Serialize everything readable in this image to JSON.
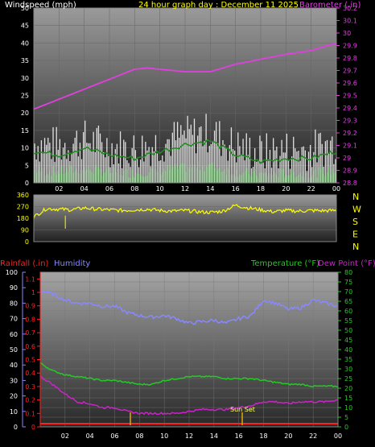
{
  "colors": {
    "wind": "#d8d8d8",
    "gust": "#ffffff",
    "avg_wind": "#1e8c1e",
    "barometer": "#e040e0",
    "direction": "#ffff00",
    "humidity": "#8888ff",
    "temperature": "#22cc22",
    "dew_point": "#cc22cc",
    "rainfall": "#ff2020",
    "sun_marker": "#ddaa00"
  },
  "panel1": {
    "left_label": "Windspeed (mph)",
    "title": "24 hour graph day : December 11 2025",
    "right_label": "Barometer (.in)"
  },
  "panel3": {
    "rain_label": "Rainfall (.in)",
    "humidity_label": "Humidity",
    "temp_label": "Temperature (°F)",
    "dew_label": "Dew Point (°F)",
    "sunset_label": "Sun Set"
  },
  "compass": [
    "N",
    "W",
    "S",
    "E",
    "N"
  ],
  "chart_data": [
    {
      "type": "area",
      "xlabel": "",
      "ylabel": "Windspeed (mph)",
      "x_ticks": [
        "02",
        "04",
        "06",
        "08",
        "10",
        "12",
        "14",
        "16",
        "18",
        "20",
        "22",
        "00"
      ],
      "y_ticks": [
        0,
        5,
        10,
        15,
        20,
        25,
        30,
        35,
        40,
        45,
        50
      ],
      "ylim": [
        0,
        50
      ],
      "y2_ticks": [
        "28.8",
        "28.9",
        "29",
        "29.1",
        "29.2",
        "29.3",
        "29.4",
        "29.5",
        "29.6",
        "29.7",
        "29.8",
        "29.9",
        "30",
        "30.1",
        "30.2"
      ],
      "y2lim": [
        28.8,
        30.2
      ],
      "series": [
        {
          "name": "Windspeed (mph)",
          "hours": [
            0,
            2,
            4,
            6,
            8,
            10,
            12,
            14,
            16,
            18,
            20,
            22,
            24
          ],
          "values": [
            9,
            8,
            10,
            8,
            7,
            9,
            11,
            12,
            8,
            6,
            7,
            7,
            9
          ]
        },
        {
          "name": "Barometer (.in)",
          "hours": [
            0,
            2,
            4,
            6,
            8,
            9,
            10,
            12,
            14,
            16,
            18,
            20,
            22,
            24
          ],
          "values": [
            29.39,
            29.47,
            29.55,
            29.63,
            29.71,
            29.72,
            29.71,
            29.69,
            29.69,
            29.75,
            29.79,
            29.83,
            29.86,
            29.92
          ]
        }
      ]
    },
    {
      "type": "line",
      "ylabel": "",
      "y_ticks": [
        0,
        90,
        180,
        270,
        360
      ],
      "ylim": [
        0,
        360
      ],
      "series": [
        {
          "name": "",
          "hours": [
            0,
            1,
            2,
            3,
            4,
            5,
            6,
            7,
            8,
            9,
            10,
            11,
            12,
            13,
            14,
            15,
            16,
            17,
            18,
            19,
            20,
            21,
            22,
            23,
            24
          ],
          "values": [
            190,
            255,
            250,
            245,
            260,
            250,
            245,
            240,
            245,
            250,
            240,
            235,
            240,
            230,
            225,
            235,
            280,
            260,
            245,
            230,
            240,
            235,
            240,
            238,
            240
          ]
        }
      ]
    },
    {
      "type": "line",
      "y_ticks_humidity": [
        0,
        10,
        20,
        30,
        40,
        50,
        60,
        70,
        80,
        90,
        100
      ],
      "ylim_humidity": [
        0,
        100
      ],
      "y_ticks_rain": [
        "0",
        "0.1",
        "0.2",
        "0.3",
        "0.4",
        "0.5",
        "0.6",
        "0.7",
        "0.8",
        "0.9",
        "1",
        "1.1"
      ],
      "ylim_rain": [
        0,
        1.15
      ],
      "y_ticks_temp": [
        0,
        5,
        10,
        15,
        20,
        25,
        30,
        35,
        40,
        45,
        50,
        55,
        60,
        65,
        70,
        75,
        80
      ],
      "ylim_temp": [
        0,
        80
      ],
      "series": [
        {
          "name": "Humidity",
          "hours": [
            0,
            1,
            2,
            3,
            4,
            5,
            6,
            7,
            8,
            9,
            10,
            11,
            12,
            13,
            14,
            15,
            16,
            17,
            18,
            19,
            20,
            21,
            22,
            23,
            24
          ],
          "values": [
            88,
            86,
            82,
            80,
            80,
            78,
            78,
            74,
            72,
            71,
            72,
            70,
            67,
            68,
            69,
            67,
            70,
            72,
            82,
            80,
            76,
            77,
            82,
            80,
            78
          ]
        },
        {
          "name": "Temperature (°F)",
          "hours": [
            0,
            1,
            2,
            3,
            4,
            5,
            6,
            7,
            8,
            9,
            10,
            11,
            12,
            13,
            14,
            15,
            16,
            17,
            18,
            19,
            20,
            21,
            22,
            23,
            24
          ],
          "values": [
            33,
            29,
            27,
            26,
            25,
            24,
            24,
            23,
            22,
            22,
            24,
            25,
            26,
            26,
            26,
            25,
            25,
            25,
            24,
            23,
            22,
            22,
            21,
            21,
            21
          ]
        },
        {
          "name": "Dew Point (°F)",
          "hours": [
            0,
            1,
            2,
            3,
            4,
            5,
            6,
            7,
            8,
            9,
            10,
            11,
            12,
            13,
            14,
            15,
            16,
            17,
            18,
            19,
            20,
            21,
            22,
            23,
            24
          ],
          "values": [
            26,
            22,
            17,
            13,
            12,
            10,
            10,
            8,
            7,
            7,
            7,
            7,
            8,
            9,
            9,
            9,
            10,
            11,
            13,
            13,
            12,
            13,
            13,
            13,
            14
          ]
        },
        {
          "name": "Rainfall (.in)",
          "hours": [
            0,
            24
          ],
          "values": [
            0,
            0
          ]
        }
      ]
    }
  ]
}
